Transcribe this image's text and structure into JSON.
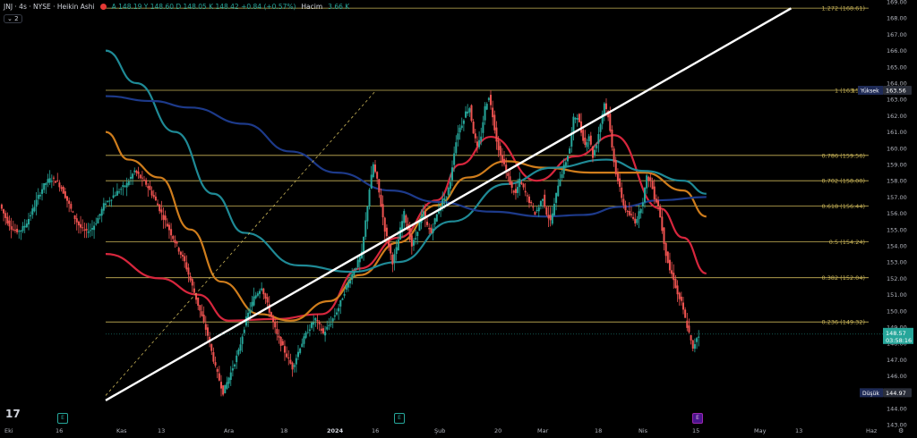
{
  "header": {
    "symbol": "JNJ · 4s · NYSE · Heikin Ashi",
    "ohlc": "A 148.19  Y 148.60  D 148.05  K 148.42  +0.84 (+0.57%)",
    "volume_label": "Hacim",
    "volume_value": "3.66 K",
    "indicator_count": "2"
  },
  "colors": {
    "up": "#26a69a",
    "down": "#ef5350",
    "fib": "#c9b458",
    "ma_red": "#d7263d",
    "ma_orange": "#cf7d1c",
    "ma_teal": "#1f8a96",
    "ma_navy": "#1d3a8a",
    "trend": "#ffffff"
  },
  "chart_data": {
    "type": "candlestick",
    "title": "JNJ · 4s · NYSE · Heikin Ashi",
    "y_axis": {
      "min": 143.0,
      "max": 169.0,
      "step": 1.0,
      "side": "right"
    },
    "x_ticks": [
      "Eki",
      "16",
      "Kas",
      "13",
      "Ara",
      "18",
      "2024",
      "16",
      "Şub",
      "20",
      "Mar",
      "18",
      "Nis",
      "15",
      "May",
      "13",
      "Haz"
    ],
    "fib_levels": [
      {
        "ratio": "1.272",
        "price": 168.61
      },
      {
        "ratio": "1",
        "price": 163.56
      },
      {
        "ratio": "0.786",
        "price": 159.56
      },
      {
        "ratio": "0.702",
        "price": 158.0
      },
      {
        "ratio": "0.618",
        "price": 156.44
      },
      {
        "ratio": "0.5",
        "price": 154.24
      },
      {
        "ratio": "0.382",
        "price": 152.04
      },
      {
        "ratio": "0.236",
        "price": 149.32
      }
    ],
    "high_label": {
      "text": "Yüksek",
      "price": 163.56
    },
    "low_label": {
      "text": "Düşük",
      "price": 144.97
    },
    "last_price": {
      "price": "148.57",
      "timer": "03:58:16"
    },
    "close_path": [
      [
        0,
        156.5
      ],
      [
        3,
        157.2
      ],
      [
        6,
        157.8
      ],
      [
        8,
        158.6
      ],
      [
        11,
        157.8
      ],
      [
        13,
        157.0
      ],
      [
        15,
        156.0
      ],
      [
        18,
        154.5
      ],
      [
        21,
        153.0
      ],
      [
        23,
        151.5
      ],
      [
        25,
        150.0
      ],
      [
        27,
        148.5
      ],
      [
        29,
        146.5
      ],
      [
        31,
        145.0
      ],
      [
        33,
        146.2
      ],
      [
        35,
        147.5
      ],
      [
        37,
        149.5
      ],
      [
        39,
        150.8
      ],
      [
        41,
        151.5
      ],
      [
        43,
        150.0
      ],
      [
        45,
        148.5
      ],
      [
        47,
        147.5
      ],
      [
        49,
        146.5
      ],
      [
        51,
        147.8
      ],
      [
        53,
        148.8
      ],
      [
        55,
        149.5
      ],
      [
        57,
        148.6
      ],
      [
        59,
        149.3
      ],
      [
        61,
        150.2
      ],
      [
        63,
        151.5
      ],
      [
        65,
        152.5
      ],
      [
        67,
        153.5
      ],
      [
        68,
        155.5
      ],
      [
        69,
        157.5
      ],
      [
        70,
        159.0
      ],
      [
        71,
        158.0
      ],
      [
        72,
        156.5
      ],
      [
        73,
        155.0
      ],
      [
        74,
        154.0
      ],
      [
        75,
        153.0
      ],
      [
        76,
        153.8
      ],
      [
        77,
        155.0
      ],
      [
        78,
        156.0
      ],
      [
        79,
        155.0
      ],
      [
        80,
        154.0
      ],
      [
        81,
        154.5
      ],
      [
        82,
        155.5
      ],
      [
        83,
        156.0
      ],
      [
        84,
        155.2
      ],
      [
        85,
        154.8
      ],
      [
        86,
        155.6
      ],
      [
        87,
        156.2
      ],
      [
        88,
        156.8
      ],
      [
        89,
        157.0
      ],
      [
        90,
        158.0
      ],
      [
        91,
        159.8
      ],
      [
        92,
        161.0
      ],
      [
        93,
        161.5
      ],
      [
        94,
        162.2
      ],
      [
        95,
        162.5
      ],
      [
        96,
        161.0
      ],
      [
        97,
        160.0
      ],
      [
        98,
        160.8
      ],
      [
        99,
        162.5
      ],
      [
        100,
        163.2
      ],
      [
        101,
        162.0
      ],
      [
        102,
        160.5
      ],
      [
        103,
        159.5
      ],
      [
        104,
        159.0
      ],
      [
        105,
        158.2
      ],
      [
        106,
        157.5
      ],
      [
        107,
        157.2
      ],
      [
        108,
        158.0
      ],
      [
        109,
        157.5
      ],
      [
        110,
        157.0
      ],
      [
        111,
        156.5
      ],
      [
        112,
        156.0
      ],
      [
        113,
        156.4
      ],
      [
        114,
        157.0
      ],
      [
        115,
        156.0
      ],
      [
        116,
        155.5
      ],
      [
        117,
        156.5
      ],
      [
        118,
        157.8
      ],
      [
        119,
        158.5
      ],
      [
        120,
        159.2
      ],
      [
        121,
        160.0
      ],
      [
        122,
        161.8
      ],
      [
        123,
        162.0
      ],
      [
        124,
        161.0
      ],
      [
        125,
        160.2
      ],
      [
        126,
        160.8
      ],
      [
        127,
        159.5
      ],
      [
        128,
        160.3
      ],
      [
        129,
        161.5
      ],
      [
        130,
        162.8
      ],
      [
        131,
        162.0
      ],
      [
        132,
        160.0
      ],
      [
        133,
        158.5
      ],
      [
        134,
        157.5
      ],
      [
        135,
        156.5
      ],
      [
        136,
        156.0
      ],
      [
        137,
        155.8
      ],
      [
        138,
        155.5
      ],
      [
        139,
        156.0
      ],
      [
        140,
        156.8
      ],
      [
        141,
        158.2
      ],
      [
        142,
        158.0
      ],
      [
        143,
        157.0
      ],
      [
        144,
        156.5
      ],
      [
        145,
        155.0
      ],
      [
        146,
        153.5
      ],
      [
        147,
        152.5
      ],
      [
        148,
        152.0
      ],
      [
        149,
        151.0
      ],
      [
        150,
        150.5
      ],
      [
        151,
        149.5
      ],
      [
        152,
        148.6
      ],
      [
        153,
        147.6
      ],
      [
        154,
        148.4
      ]
    ],
    "moving_averages": [
      {
        "color": "ma_red",
        "points": [
          [
            0,
            153.5
          ],
          [
            14,
            152.0
          ],
          [
            24,
            151.0
          ],
          [
            32,
            149.4
          ],
          [
            44,
            149.5
          ],
          [
            56,
            149.8
          ],
          [
            66,
            152.6
          ],
          [
            76,
            154.5
          ],
          [
            86,
            156.8
          ],
          [
            92,
            159.0
          ],
          [
            100,
            160.7
          ],
          [
            112,
            158.0
          ],
          [
            122,
            159.5
          ],
          [
            132,
            160.8
          ],
          [
            144,
            156.3
          ],
          [
            150,
            154.5
          ],
          [
            156,
            152.3
          ]
        ]
      },
      {
        "color": "ma_orange",
        "points": [
          [
            0,
            161.0
          ],
          [
            6,
            159.3
          ],
          [
            14,
            158.2
          ],
          [
            22,
            155.0
          ],
          [
            30,
            151.8
          ],
          [
            40,
            149.8
          ],
          [
            48,
            149.4
          ],
          [
            58,
            150.6
          ],
          [
            66,
            152.2
          ],
          [
            76,
            154.2
          ],
          [
            86,
            156.5
          ],
          [
            94,
            158.2
          ],
          [
            104,
            159.2
          ],
          [
            114,
            158.8
          ],
          [
            126,
            158.5
          ],
          [
            140,
            158.5
          ],
          [
            150,
            157.4
          ],
          [
            156,
            155.8
          ]
        ]
      },
      {
        "color": "ma_teal",
        "points": [
          [
            0,
            166.0
          ],
          [
            8,
            164.0
          ],
          [
            18,
            161.0
          ],
          [
            28,
            157.2
          ],
          [
            36,
            154.8
          ],
          [
            50,
            152.8
          ],
          [
            64,
            152.4
          ],
          [
            76,
            153.0
          ],
          [
            90,
            155.5
          ],
          [
            104,
            157.8
          ],
          [
            116,
            158.8
          ],
          [
            130,
            159.3
          ],
          [
            140,
            158.6
          ],
          [
            150,
            158.0
          ],
          [
            156,
            157.2
          ]
        ]
      },
      {
        "color": "ma_navy",
        "points": [
          [
            0,
            163.2
          ],
          [
            12,
            162.9
          ],
          [
            22,
            162.5
          ],
          [
            36,
            161.5
          ],
          [
            48,
            159.8
          ],
          [
            60,
            158.5
          ],
          [
            74,
            157.4
          ],
          [
            86,
            156.7
          ],
          [
            100,
            156.1
          ],
          [
            114,
            155.8
          ],
          [
            124,
            155.9
          ],
          [
            134,
            156.4
          ],
          [
            144,
            156.8
          ],
          [
            156,
            157.0
          ]
        ]
      }
    ],
    "trendline": {
      "from": [
        0,
        144.5
      ],
      "to": [
        178,
        168.6
      ]
    },
    "dashed_line": {
      "from": [
        0,
        144.8
      ],
      "to": [
        70,
        163.5
      ]
    }
  },
  "events": [
    "E",
    "E",
    "E"
  ]
}
